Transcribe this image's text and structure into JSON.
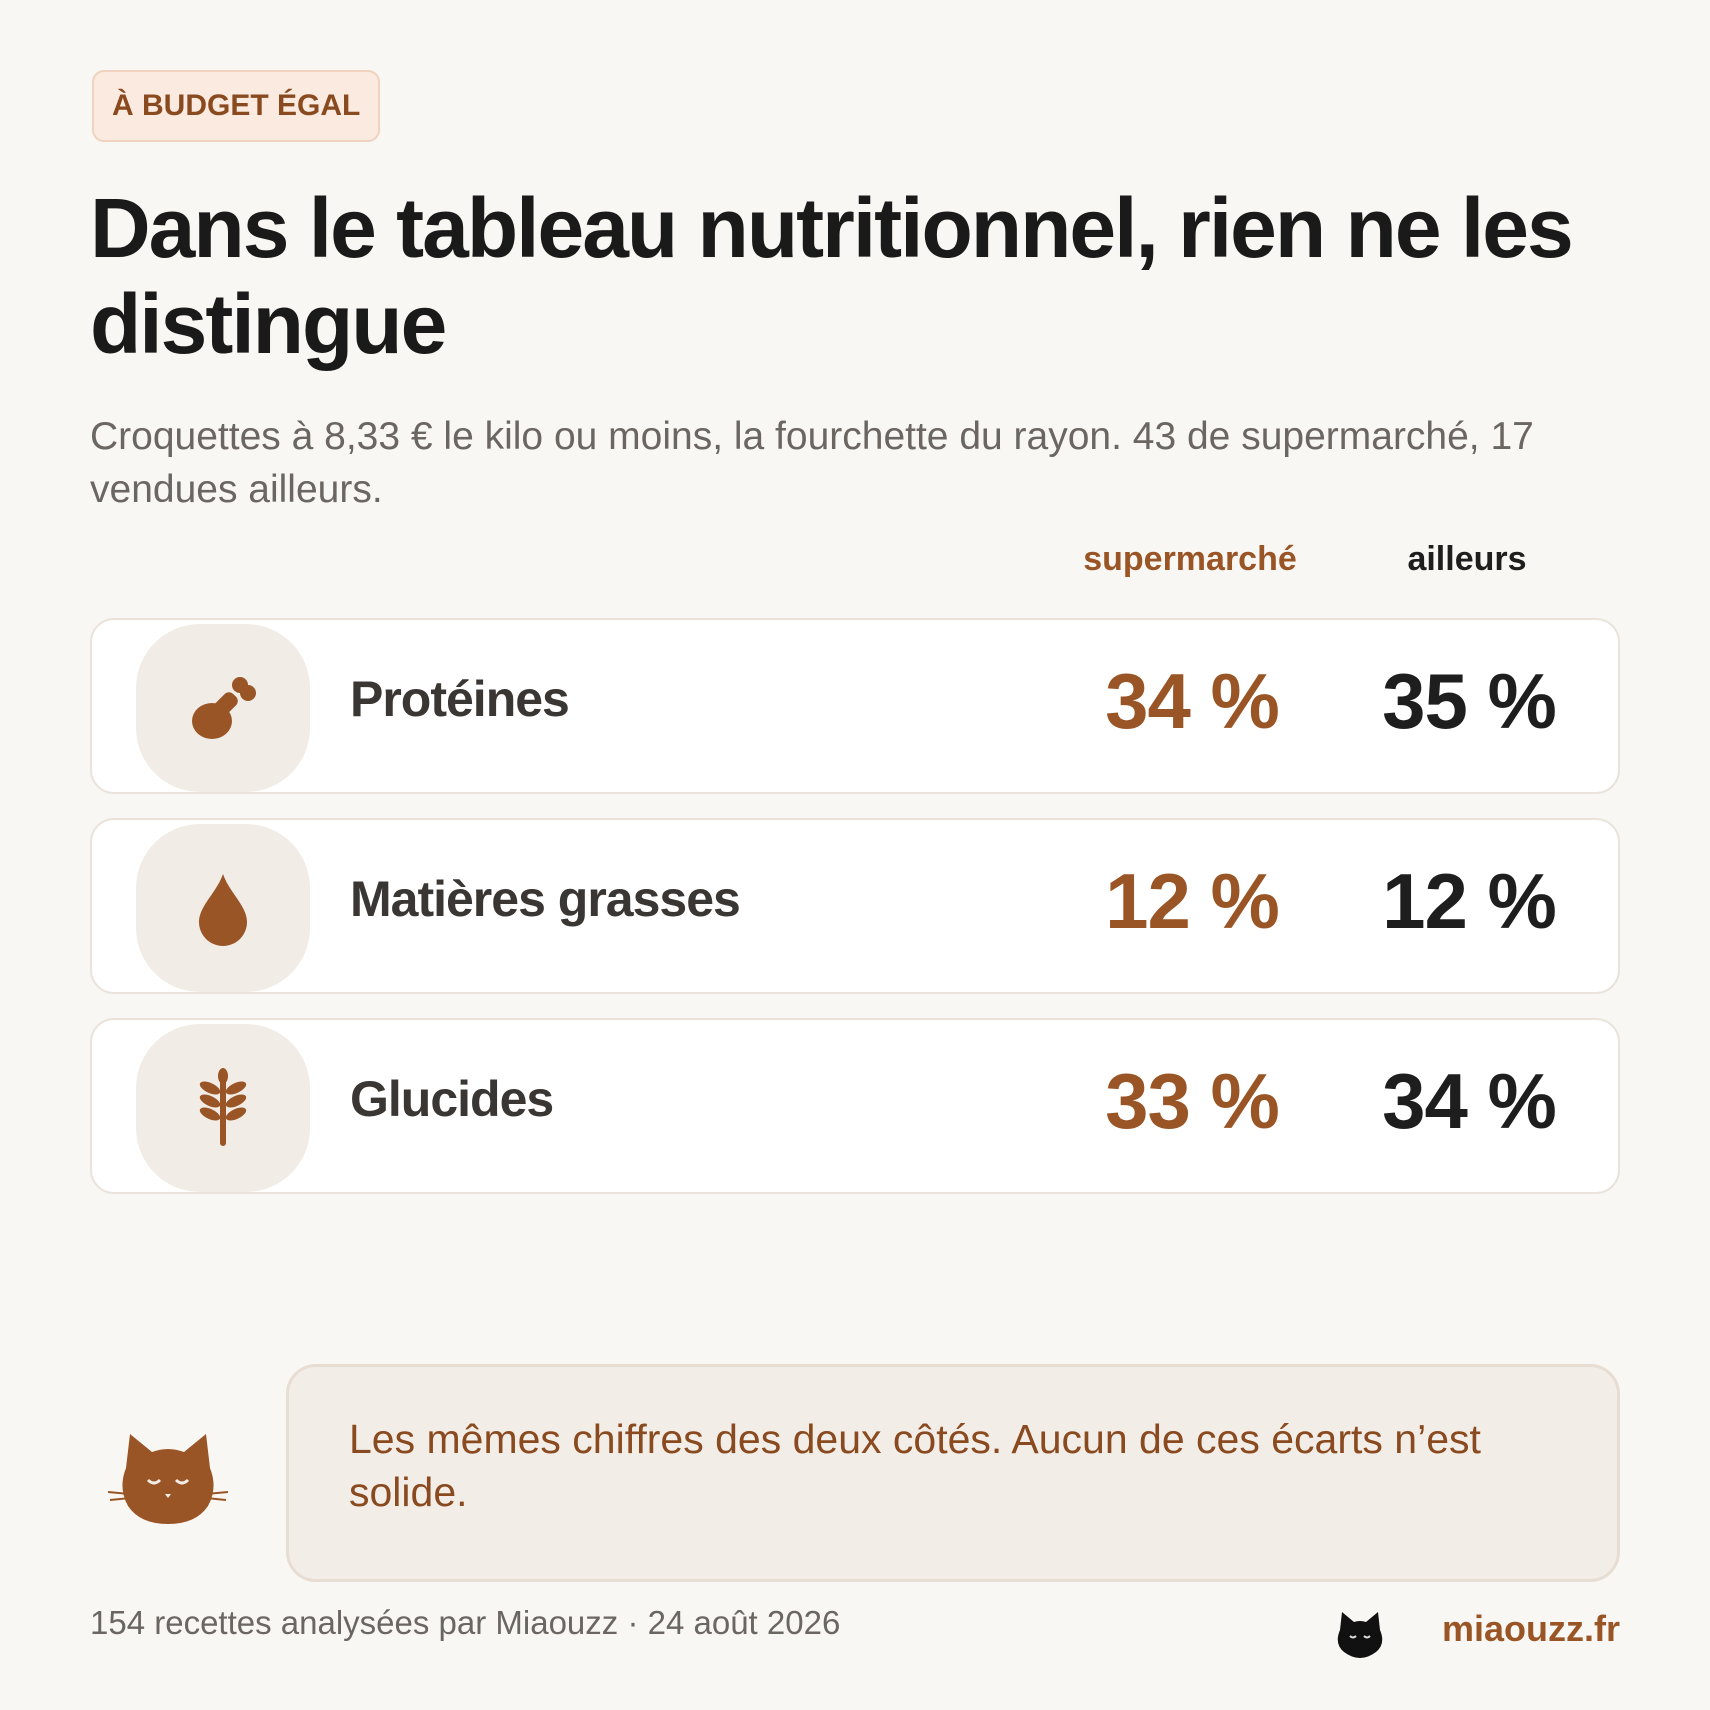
{
  "tag": "À BUDGET ÉGAL",
  "title": "Dans le tableau nutritionnel, rien ne les distingue",
  "subtitle": "Croquettes à 8,33 € le kilo ou moins, la fourchette du rayon. 43 de supermarché, 17 vendues ailleurs.",
  "columns": {
    "supermarche": "supermarché",
    "ailleurs": "ailleurs"
  },
  "rows": [
    {
      "icon": "drumstick-icon",
      "label": "Protéines",
      "supermarche": "34 %",
      "ailleurs": "35 %"
    },
    {
      "icon": "drop-icon",
      "label": "Matières grasses",
      "supermarche": "12 %",
      "ailleurs": "12 %"
    },
    {
      "icon": "wheat-icon",
      "label": "Glucides",
      "supermarche": "33 %",
      "ailleurs": "34 %"
    }
  ],
  "note": "Les mêmes chiffres des deux côtés. Aucun de ces écarts n’est solide.",
  "footer": {
    "source": "154 recettes analysées par Miaouzz · 24 août 2026",
    "site": "miaouzz.fr"
  },
  "colors": {
    "accent": "#9a5526",
    "text": "#1e1e1e",
    "background": "#f9f7f3"
  }
}
